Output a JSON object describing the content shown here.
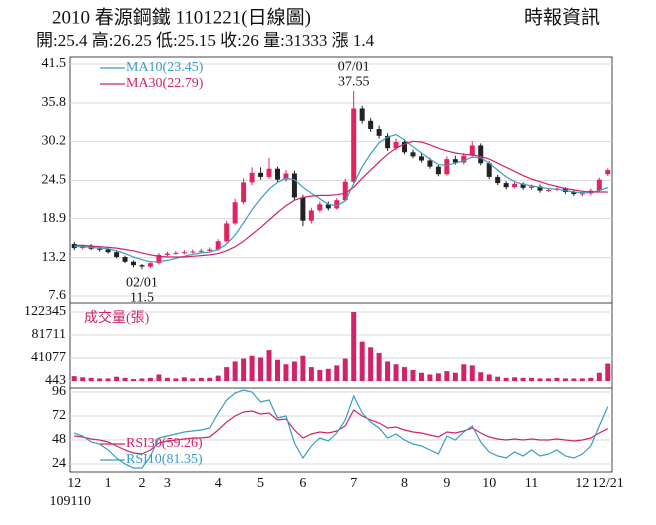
{
  "title": "2010  春源鋼鐵 1101221(日線圖)",
  "source": "時報資訊",
  "summary": "開:25.4 高:26.25 低:25.15 收:26 量:31333 漲 1.4",
  "x_start_label": "109110",
  "chart_data": [
    {
      "type": "candlestick",
      "categories": [
        "12",
        null,
        null,
        null,
        "1",
        null,
        null,
        null,
        "2",
        null,
        null,
        "3",
        null,
        null,
        null,
        null,
        null,
        "4",
        null,
        null,
        null,
        null,
        "5",
        null,
        null,
        null,
        null,
        "6",
        null,
        null,
        null,
        null,
        null,
        "7",
        null,
        null,
        null,
        null,
        null,
        "8",
        null,
        null,
        null,
        null,
        "9",
        null,
        null,
        null,
        null,
        "10",
        null,
        null,
        null,
        null,
        "11",
        null,
        null,
        null,
        null,
        null,
        "12",
        null,
        null,
        "12/21"
      ],
      "open": [
        15.2,
        14.6,
        14.9,
        14.5,
        14.4,
        14.0,
        13.3,
        12.6,
        12.1,
        11.9,
        12.4,
        13.6,
        13.8,
        13.9,
        14.0,
        14.1,
        14.2,
        14.4,
        15.6,
        18.2,
        21.3,
        24.2,
        25.6,
        25.0,
        26.2,
        24.6,
        25.5,
        22.0,
        18.6,
        20.1,
        21.0,
        20.4,
        21.6,
        24.3,
        35.0,
        33.2,
        32.0,
        31.0,
        29.2,
        30.1,
        28.6,
        28.0,
        27.4,
        26.5,
        25.4,
        27.6,
        27.1,
        28.1,
        29.6,
        27.0,
        25.0,
        24.1,
        23.5,
        24.0,
        23.4,
        23.6,
        23.0,
        23.1,
        23.3,
        22.8,
        22.5,
        22.6,
        23.0,
        25.4
      ],
      "high": [
        15.5,
        15.1,
        15.2,
        14.8,
        14.6,
        14.2,
        13.5,
        12.8,
        12.3,
        12.6,
        13.9,
        14.1,
        14.2,
        14.3,
        14.4,
        14.5,
        14.7,
        15.9,
        18.6,
        21.8,
        24.8,
        26.4,
        26.4,
        27.8,
        26.5,
        26.0,
        25.9,
        22.4,
        20.5,
        21.4,
        21.4,
        21.9,
        24.7,
        37.55,
        35.4,
        33.6,
        32.5,
        31.4,
        30.6,
        30.4,
        29.0,
        28.4,
        27.8,
        26.8,
        28.0,
        28.1,
        28.5,
        30.2,
        29.9,
        27.3,
        25.3,
        24.4,
        24.3,
        24.2,
        23.9,
        23.9,
        23.4,
        23.5,
        23.5,
        23.1,
        22.9,
        23.3,
        24.9,
        26.25
      ],
      "low": [
        14.3,
        14.4,
        14.3,
        14.1,
        13.8,
        13.1,
        12.4,
        11.8,
        11.5,
        11.7,
        12.2,
        13.4,
        13.6,
        13.7,
        13.8,
        13.9,
        14.0,
        14.2,
        15.4,
        18.0,
        21.0,
        23.8,
        24.6,
        24.7,
        24.2,
        24.3,
        21.6,
        17.8,
        18.2,
        19.8,
        20.1,
        20.2,
        21.4,
        24.1,
        32.8,
        31.6,
        30.6,
        28.8,
        28.9,
        28.3,
        27.7,
        27.1,
        26.2,
        25.1,
        25.2,
        26.8,
        26.8,
        27.9,
        26.7,
        24.7,
        23.8,
        23.2,
        23.3,
        23.1,
        23.1,
        22.7,
        22.8,
        22.9,
        22.5,
        22.2,
        22.2,
        22.3,
        22.8,
        25.15
      ],
      "close": [
        14.6,
        14.9,
        14.5,
        14.4,
        14.0,
        13.3,
        12.6,
        12.1,
        11.9,
        12.4,
        13.6,
        13.8,
        13.9,
        14.0,
        14.1,
        14.2,
        14.4,
        15.6,
        18.2,
        21.3,
        24.2,
        25.6,
        25.0,
        26.2,
        24.6,
        25.5,
        22.0,
        18.6,
        20.1,
        21.0,
        20.4,
        21.6,
        24.3,
        35.0,
        33.2,
        32.0,
        31.0,
        29.2,
        30.1,
        28.6,
        28.0,
        27.4,
        26.5,
        25.4,
        27.6,
        27.1,
        28.1,
        29.6,
        27.0,
        25.0,
        24.1,
        23.5,
        24.0,
        23.4,
        23.6,
        23.0,
        23.1,
        23.3,
        22.8,
        22.5,
        22.6,
        23.0,
        24.6,
        26.0
      ],
      "up_color": "#e0245e",
      "down_color": "#222222",
      "series": [
        {
          "name": "MA10(23.45)",
          "color": "#3a9cc4",
          "values": [
            14.8,
            14.8,
            14.7,
            14.6,
            14.5,
            14.2,
            13.8,
            13.3,
            12.9,
            12.6,
            12.6,
            12.8,
            13.1,
            13.4,
            13.7,
            13.9,
            14.0,
            14.4,
            15.2,
            16.5,
            18.3,
            20.2,
            21.8,
            23.2,
            24.2,
            24.8,
            24.6,
            23.5,
            22.6,
            21.8,
            21.0,
            20.8,
            21.5,
            24.0,
            26.5,
            28.4,
            30.0,
            30.8,
            31.2,
            30.4,
            29.4,
            28.5,
            27.6,
            26.8,
            26.7,
            27.0,
            27.4,
            27.9,
            27.8,
            27.0,
            26.0,
            25.0,
            24.3,
            23.9,
            23.7,
            23.5,
            23.3,
            23.2,
            23.0,
            22.8,
            22.7,
            22.7,
            23.0,
            23.45
          ]
        },
        {
          "name": "MA30(22.79)",
          "color": "#d0246a",
          "values": [
            15.0,
            15.0,
            14.9,
            14.8,
            14.7,
            14.6,
            14.4,
            14.2,
            13.9,
            13.6,
            13.4,
            13.3,
            13.3,
            13.3,
            13.4,
            13.5,
            13.6,
            13.8,
            14.2,
            14.8,
            15.6,
            16.6,
            17.6,
            18.7,
            19.8,
            20.8,
            21.6,
            22.0,
            22.2,
            22.3,
            22.3,
            22.4,
            22.6,
            23.5,
            24.8,
            26.0,
            27.2,
            28.3,
            29.2,
            29.8,
            30.2,
            30.1,
            29.7,
            29.2,
            28.8,
            28.5,
            28.3,
            28.2,
            28.0,
            27.6,
            27.0,
            26.4,
            25.8,
            25.2,
            24.7,
            24.3,
            23.9,
            23.6,
            23.3,
            23.1,
            22.9,
            22.8,
            22.8,
            22.79
          ]
        }
      ],
      "legend": "upper left",
      "annotations": {
        "high": "07/01",
        "low": "02/01"
      },
      "ylim": [
        7.6,
        41.5
      ],
      "yticks": [
        41.5,
        35.8,
        30.2,
        24.5,
        18.9,
        13.2,
        7.6
      ],
      "grid": true
    },
    {
      "type": "bar",
      "ylabel": "成交量(張)",
      "color": "#d0246a",
      "values": [
        9000,
        7000,
        6000,
        5000,
        5000,
        8000,
        6000,
        4000,
        5000,
        6000,
        12000,
        6000,
        5000,
        7000,
        5000,
        6000,
        6000,
        10000,
        25000,
        35000,
        40000,
        45000,
        42000,
        55000,
        38000,
        30000,
        35000,
        45000,
        25000,
        20000,
        22000,
        28000,
        40000,
        122345,
        70000,
        60000,
        50000,
        35000,
        30000,
        25000,
        20000,
        15000,
        12000,
        14000,
        18000,
        15000,
        30000,
        28000,
        16000,
        12000,
        8000,
        6000,
        7000,
        6000,
        6000,
        5000,
        5000,
        6000,
        5000,
        5000,
        5000,
        6000,
        15000,
        31333
      ],
      "ylim": [
        443,
        122345
      ],
      "yticks": [
        122345,
        81711,
        41077,
        443
      ],
      "grid": true
    },
    {
      "type": "line",
      "series": [
        {
          "name": "RSI30(59.26)",
          "color": "#d0246a",
          "values": [
            52,
            51,
            49,
            48,
            46,
            42,
            38,
            35,
            34,
            38,
            45,
            47,
            48,
            49,
            50,
            50,
            51,
            58,
            66,
            72,
            76,
            77,
            74,
            75,
            68,
            69,
            58,
            50,
            54,
            56,
            55,
            57,
            62,
            78,
            72,
            68,
            65,
            60,
            61,
            58,
            56,
            55,
            53,
            51,
            56,
            55,
            57,
            60,
            55,
            51,
            49,
            48,
            49,
            48,
            49,
            48,
            48,
            49,
            48,
            47,
            48,
            50,
            55,
            59.26
          ]
        },
        {
          "name": "RSI10(81.35)",
          "color": "#3a9cc4",
          "values": [
            55,
            52,
            46,
            44,
            38,
            30,
            24,
            20,
            20,
            32,
            50,
            52,
            54,
            56,
            57,
            58,
            60,
            75,
            88,
            95,
            98,
            96,
            86,
            88,
            70,
            72,
            45,
            30,
            42,
            50,
            47,
            55,
            68,
            92,
            75,
            66,
            60,
            50,
            54,
            48,
            44,
            42,
            38,
            34,
            52,
            48,
            56,
            62,
            46,
            36,
            32,
            30,
            36,
            32,
            38,
            32,
            34,
            38,
            32,
            30,
            34,
            42,
            62,
            81.35
          ]
        }
      ],
      "legend": "lower left",
      "ylim": [
        16,
        100
      ],
      "yticks": [
        96,
        72,
        48,
        24
      ],
      "grid": true
    }
  ]
}
